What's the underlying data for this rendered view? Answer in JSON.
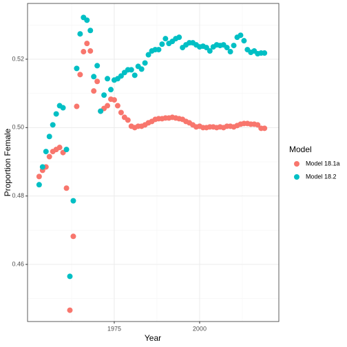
{
  "chart_data": {
    "type": "scatter",
    "xlabel": "Year",
    "ylabel": "Proportion Female",
    "legend_title": "Model",
    "legend": "right",
    "grid": true,
    "xlim": [
      1949.6,
      2023.2
    ],
    "ylim": [
      0.4433,
      0.5363
    ],
    "xticks": [
      1975,
      2000
    ],
    "yticks": [
      0.46,
      0.48,
      {
        "value": 0.5,
        "label": "0.50"
      },
      0.52
    ],
    "series": [
      {
        "name": "Model 18.1a",
        "color": "#f8766d",
        "x": [
          1953,
          1954,
          1955,
          1956,
          1957,
          1958,
          1959,
          1960,
          1961,
          1962,
          1963,
          1964,
          1965,
          1966,
          1967,
          1968,
          1969,
          1970,
          1971,
          1972,
          1973,
          1974,
          1975,
          1976,
          1977,
          1978,
          1979,
          1980,
          1981,
          1982,
          1983,
          1984,
          1985,
          1986,
          1987,
          1988,
          1989,
          1990,
          1991,
          1992,
          1993,
          1994,
          1995,
          1996,
          1997,
          1998,
          1999,
          2000,
          2001,
          2002,
          2003,
          2004,
          2005,
          2006,
          2007,
          2008,
          2009,
          2010,
          2011,
          2012,
          2013,
          2014,
          2015,
          2016,
          2017,
          2018,
          2019
        ],
        "values": [
          0.4857,
          0.4875,
          0.4885,
          0.4915,
          0.493,
          0.4936,
          0.4942,
          0.4927,
          0.4823,
          0.4466,
          0.4682,
          0.5062,
          0.5155,
          0.5222,
          0.5246,
          0.5224,
          0.5107,
          0.5135,
          0.5048,
          0.5056,
          0.5064,
          0.5083,
          0.5081,
          0.5064,
          0.5044,
          0.503,
          0.5022,
          0.5004,
          0.5,
          0.5004,
          0.5004,
          0.5008,
          0.5014,
          0.5018,
          0.5024,
          0.5026,
          0.5026,
          0.5028,
          0.5028,
          0.503,
          0.5028,
          0.5026,
          0.5024,
          0.5018,
          0.5014,
          0.5008,
          0.5002,
          0.5004,
          0.5,
          0.5,
          0.5002,
          0.5002,
          0.5,
          0.5002,
          0.5,
          0.5004,
          0.5004,
          0.5002,
          0.5006,
          0.501,
          0.5012,
          0.5012,
          0.501,
          0.501,
          0.5008,
          0.4998,
          0.4998
        ]
      },
      {
        "name": "Model 18.2",
        "color": "#00bfc4",
        "x": [
          1953,
          1954,
          1955,
          1956,
          1957,
          1958,
          1959,
          1960,
          1961,
          1962,
          1963,
          1964,
          1965,
          1966,
          1967,
          1968,
          1969,
          1970,
          1971,
          1972,
          1973,
          1974,
          1975,
          1976,
          1977,
          1978,
          1979,
          1980,
          1981,
          1982,
          1983,
          1984,
          1985,
          1986,
          1987,
          1988,
          1989,
          1990,
          1991,
          1992,
          1993,
          1994,
          1995,
          1996,
          1997,
          1998,
          1999,
          2000,
          2001,
          2002,
          2003,
          2004,
          2005,
          2006,
          2007,
          2008,
          2009,
          2010,
          2011,
          2012,
          2013,
          2014,
          2015,
          2016,
          2017,
          2018,
          2019
        ],
        "values": [
          0.4833,
          0.4885,
          0.493,
          0.4974,
          0.5008,
          0.504,
          0.5064,
          0.5058,
          0.4936,
          0.4565,
          0.4786,
          0.5173,
          0.5274,
          0.5322,
          0.5314,
          0.5284,
          0.5149,
          0.5181,
          0.5048,
          0.5095,
          0.5143,
          0.5111,
          0.5139,
          0.5143,
          0.5151,
          0.5161,
          0.5169,
          0.5169,
          0.5153,
          0.5179,
          0.5171,
          0.5189,
          0.5213,
          0.5224,
          0.5228,
          0.5228,
          0.5244,
          0.526,
          0.5246,
          0.5252,
          0.526,
          0.5264,
          0.5234,
          0.5242,
          0.5248,
          0.5248,
          0.5242,
          0.5236,
          0.5238,
          0.5234,
          0.5224,
          0.5236,
          0.5242,
          0.524,
          0.5242,
          0.5234,
          0.5222,
          0.524,
          0.5264,
          0.527,
          0.5254,
          0.5228,
          0.522,
          0.5224,
          0.5216,
          0.5218,
          0.5218
        ]
      }
    ]
  }
}
